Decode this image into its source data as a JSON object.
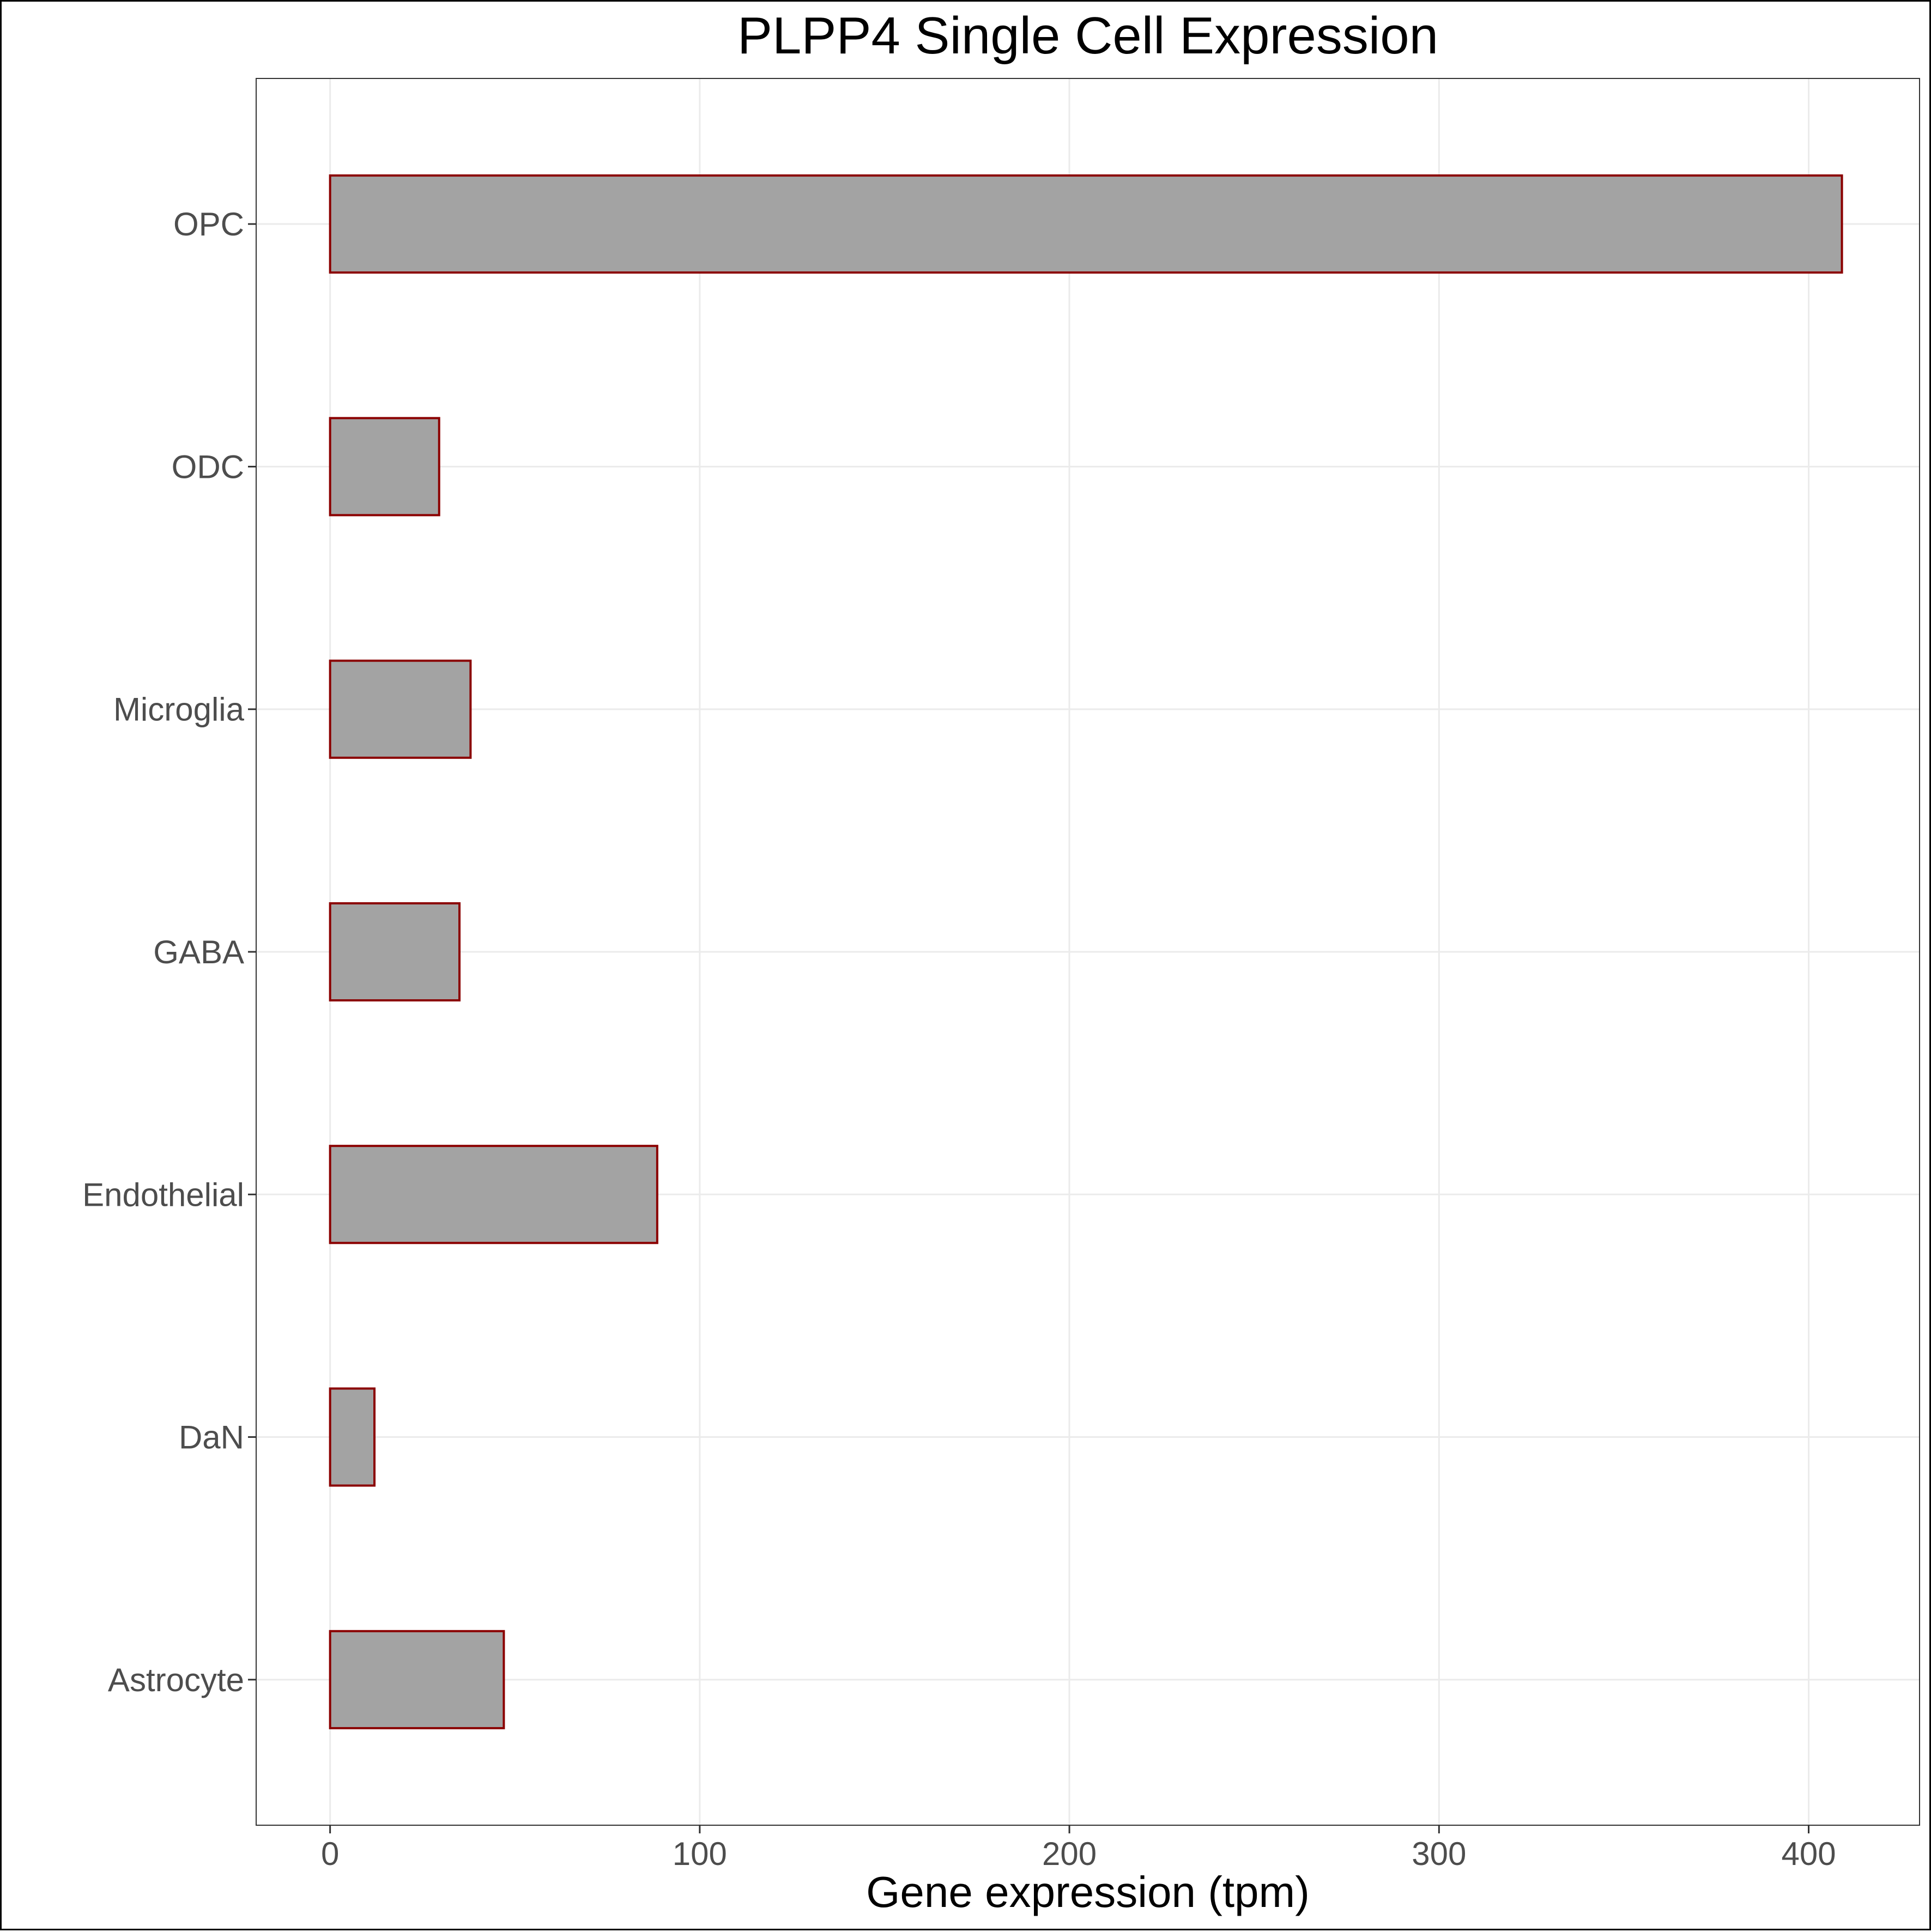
{
  "chart_data": {
    "type": "bar",
    "orientation": "horizontal",
    "title": "PLPP4 Single Cell Expression",
    "xlabel": "Gene expression (tpm)",
    "ylabel": "",
    "categories": [
      "Astrocyte",
      "DaN",
      "Endothelial",
      "GABA",
      "Microglia",
      "ODC",
      "OPC"
    ],
    "values": [
      47,
      12,
      88.5,
      35,
      38,
      29.5,
      409
    ],
    "xlim": [
      -20,
      430
    ],
    "xticks": [
      0,
      100,
      200,
      300,
      400
    ],
    "grid": true,
    "bar_fill": "#a3a3a3",
    "bar_stroke": "#8b0000",
    "grid_color": "#ebebeb",
    "panel_border": "#333333"
  }
}
